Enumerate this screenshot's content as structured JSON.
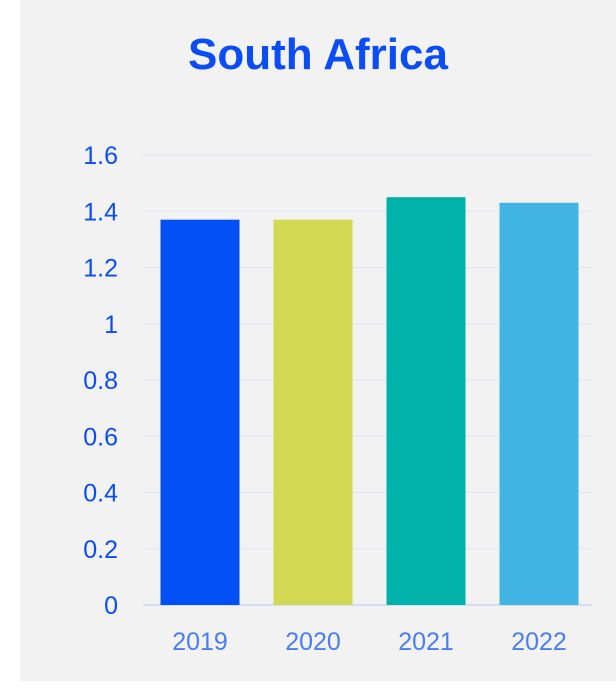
{
  "chart_data": {
    "type": "bar",
    "title": "South Africa",
    "xlabel": "",
    "ylabel": "",
    "categories": [
      "2019",
      "2020",
      "2021",
      "2022"
    ],
    "values": [
      1.37,
      1.37,
      1.45,
      1.43
    ],
    "colors": [
      "#0050f5",
      "#d3d853",
      "#00b2a9",
      "#42b4e4"
    ],
    "ylim": [
      0,
      1.6
    ],
    "yticks": [
      "0",
      "0.2",
      "0.4",
      "0.6",
      "0.8",
      "1",
      "1.2",
      "1.4",
      "1.6"
    ],
    "grid": true,
    "legend": "none",
    "grid_color": "#dde6f7",
    "axis_color": "#c9d6f3",
    "background": "#f2f2f2"
  }
}
